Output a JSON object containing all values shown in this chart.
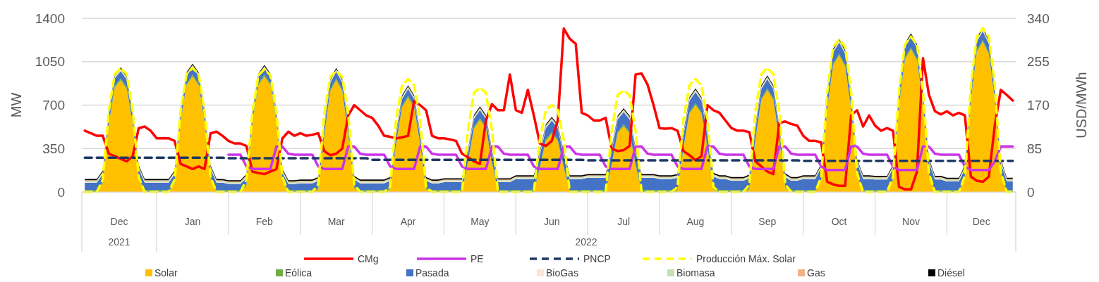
{
  "chart_data": {
    "type": "area",
    "stacked": true,
    "ylabel": "MW",
    "y2label": "USD/MWh",
    "grid": "y",
    "legend": "bottom",
    "ylim": [
      0,
      1400
    ],
    "yticks": [
      0,
      350,
      700,
      1050,
      1400
    ],
    "y2lim": [
      0,
      340
    ],
    "y2ticks": [
      0,
      85,
      170,
      255,
      340
    ],
    "categories": [
      null,
      null,
      null,
      null,
      null,
      null,
      "Dec",
      null,
      null,
      null,
      null,
      null,
      null,
      null,
      null,
      null,
      null,
      null,
      "Jan",
      null,
      null,
      null,
      null,
      null,
      null,
      null,
      null,
      null,
      null,
      null,
      "Feb",
      null,
      null,
      null,
      null,
      null,
      null,
      null,
      null,
      null,
      null,
      null,
      "Mar",
      null,
      null,
      null,
      null,
      null,
      null,
      null,
      null,
      null,
      null,
      null,
      "Apr",
      null,
      null,
      null,
      null,
      null,
      null,
      null,
      null,
      null,
      null,
      null,
      "May",
      null,
      null,
      null,
      null,
      null,
      null,
      null,
      null,
      null,
      null,
      null,
      "Jun",
      null,
      null,
      null,
      null,
      null,
      null,
      null,
      null,
      null,
      null,
      null,
      "Jul",
      null,
      null,
      null,
      null,
      null,
      null,
      null,
      null,
      null,
      null,
      null,
      "Aug",
      null,
      null,
      null,
      null,
      null,
      null,
      null,
      null,
      null,
      null,
      null,
      "Sep",
      null,
      null,
      null,
      null,
      null,
      null,
      null,
      null,
      null,
      null,
      null,
      "Oct",
      null,
      null,
      null,
      null,
      null,
      null,
      null,
      null,
      null,
      null,
      null,
      "Nov",
      null,
      null,
      null,
      null,
      null,
      null,
      null,
      null,
      null,
      null,
      null,
      "Dec",
      null,
      null,
      null,
      null,
      null
    ],
    "annotations": [
      "2021",
      "2022"
    ],
    "series": [
      {
        "name": "Solar",
        "color": "#ffc000",
        "values": [
          0,
          0,
          0,
          70,
          540,
          840,
          900,
          830,
          540,
          110,
          0,
          0,
          0,
          0,
          0,
          70,
          560,
          860,
          930,
          860,
          560,
          110,
          0,
          0,
          0,
          0,
          0,
          50,
          560,
          860,
          930,
          860,
          560,
          90,
          0,
          0,
          0,
          0,
          0,
          20,
          450,
          810,
          900,
          810,
          450,
          30,
          0,
          0,
          0,
          0,
          0,
          20,
          380,
          680,
          760,
          680,
          380,
          20,
          0,
          0,
          0,
          0,
          0,
          0,
          230,
          510,
          580,
          510,
          230,
          0,
          0,
          0,
          0,
          0,
          0,
          0,
          190,
          410,
          470,
          410,
          190,
          0,
          0,
          0,
          0,
          0,
          0,
          0,
          210,
          470,
          530,
          470,
          210,
          0,
          0,
          0,
          0,
          0,
          0,
          10,
          350,
          630,
          700,
          630,
          350,
          20,
          0,
          0,
          0,
          0,
          0,
          20,
          410,
          740,
          820,
          740,
          410,
          30,
          0,
          0,
          0,
          0,
          0,
          90,
          660,
          1020,
          1100,
          1010,
          660,
          130,
          0,
          0,
          0,
          0,
          0,
          90,
          690,
          1070,
          1150,
          1060,
          690,
          140,
          0,
          0,
          0,
          0,
          0,
          100,
          730,
          1130,
          1210,
          1110,
          730,
          150,
          0,
          0
        ]
      },
      {
        "name": "Eólica",
        "color": "#70ad47",
        "values": [
          15,
          15,
          15,
          15,
          15,
          15,
          15,
          15,
          15,
          15,
          15,
          15,
          15,
          15,
          15,
          15,
          15,
          15,
          15,
          15,
          15,
          15,
          15,
          15,
          15,
          15,
          15,
          15,
          15,
          15,
          15,
          15,
          15,
          15,
          15,
          15,
          15,
          15,
          15,
          15,
          15,
          15,
          15,
          15,
          15,
          15,
          15,
          15,
          15,
          15,
          15,
          15,
          15,
          15,
          15,
          15,
          15,
          15,
          15,
          15,
          15,
          15,
          15,
          15,
          15,
          15,
          15,
          15,
          15,
          15,
          15,
          15,
          15,
          15,
          15,
          15,
          15,
          15,
          15,
          15,
          15,
          15,
          15,
          15,
          15,
          15,
          15,
          15,
          15,
          15,
          15,
          15,
          15,
          15,
          15,
          15,
          15,
          15,
          15,
          15,
          15,
          15,
          15,
          15,
          15,
          15,
          15,
          15,
          15,
          15,
          15,
          15,
          15,
          15,
          15,
          15,
          15,
          15,
          15,
          15,
          15,
          15,
          15,
          15,
          15,
          15,
          15,
          15,
          15,
          15,
          15,
          15,
          15,
          15,
          15,
          15,
          15,
          15,
          15,
          15,
          15,
          15,
          15,
          15,
          15,
          15,
          15,
          15,
          15,
          15,
          15,
          15,
          15,
          15,
          15,
          15
        ]
      },
      {
        "name": "Pasada",
        "color": "#4472c4",
        "values": [
          60,
          60,
          60,
          60,
          60,
          60,
          60,
          60,
          60,
          60,
          60,
          60,
          60,
          60,
          60,
          60,
          60,
          60,
          60,
          60,
          60,
          60,
          60,
          60,
          50,
          50,
          50,
          50,
          50,
          50,
          50,
          50,
          50,
          50,
          50,
          50,
          55,
          55,
          55,
          55,
          55,
          55,
          55,
          55,
          55,
          55,
          55,
          55,
          55,
          55,
          55,
          55,
          55,
          55,
          55,
          55,
          55,
          55,
          55,
          55,
          65,
          65,
          65,
          65,
          65,
          65,
          65,
          65,
          65,
          65,
          65,
          65,
          90,
          90,
          90,
          90,
          90,
          90,
          90,
          90,
          90,
          90,
          90,
          90,
          100,
          100,
          100,
          100,
          100,
          100,
          100,
          100,
          100,
          100,
          100,
          100,
          90,
          90,
          90,
          90,
          90,
          90,
          90,
          90,
          90,
          90,
          90,
          90,
          75,
          75,
          75,
          75,
          75,
          75,
          75,
          75,
          75,
          75,
          75,
          75,
          90,
          90,
          90,
          90,
          90,
          90,
          90,
          90,
          90,
          90,
          90,
          90,
          85,
          85,
          85,
          85,
          85,
          85,
          85,
          85,
          85,
          85,
          85,
          85,
          70,
          70,
          70,
          70,
          70,
          70,
          70,
          70,
          70,
          70,
          70,
          70
        ]
      },
      {
        "name": "BioGas",
        "color": "#fbe5d6",
        "values": [
          5,
          5,
          5,
          5,
          5,
          5,
          5,
          5,
          5,
          5,
          5,
          5,
          5,
          5,
          5,
          5,
          5,
          5,
          5,
          5,
          5,
          5,
          5,
          5,
          5,
          5,
          5,
          5,
          5,
          5,
          5,
          5,
          5,
          5,
          5,
          5,
          5,
          5,
          5,
          5,
          5,
          5,
          5,
          5,
          5,
          5,
          5,
          5,
          5,
          5,
          5,
          5,
          5,
          5,
          5,
          5,
          5,
          5,
          5,
          5,
          5,
          5,
          5,
          5,
          5,
          5,
          5,
          5,
          5,
          5,
          5,
          5,
          5,
          5,
          5,
          5,
          5,
          5,
          5,
          5,
          5,
          5,
          5,
          5,
          5,
          5,
          5,
          5,
          5,
          5,
          5,
          5,
          5,
          5,
          5,
          5,
          5,
          5,
          5,
          5,
          5,
          5,
          5,
          5,
          5,
          5,
          5,
          5,
          5,
          5,
          5,
          5,
          5,
          5,
          5,
          5,
          5,
          5,
          5,
          5,
          5,
          5,
          5,
          5,
          5,
          5,
          5,
          5,
          5,
          5,
          5,
          5,
          5,
          5,
          5,
          5,
          5,
          5,
          5,
          5,
          5,
          5,
          5,
          5,
          5,
          5,
          5,
          5,
          5,
          5,
          5,
          5,
          5,
          5,
          5,
          5
        ]
      },
      {
        "name": "Biomasa",
        "color": "#c5e0b4",
        "values": [
          10,
          10,
          10,
          10,
          10,
          10,
          10,
          10,
          10,
          10,
          10,
          10,
          10,
          10,
          10,
          10,
          10,
          10,
          10,
          10,
          10,
          10,
          10,
          10,
          10,
          10,
          10,
          10,
          10,
          10,
          10,
          10,
          10,
          10,
          10,
          10,
          10,
          10,
          10,
          10,
          10,
          10,
          10,
          10,
          10,
          10,
          10,
          10,
          10,
          10,
          10,
          10,
          10,
          10,
          10,
          10,
          10,
          10,
          10,
          10,
          10,
          10,
          10,
          10,
          10,
          10,
          10,
          10,
          10,
          10,
          10,
          10,
          10,
          10,
          10,
          10,
          10,
          10,
          10,
          10,
          10,
          10,
          10,
          10,
          10,
          10,
          10,
          10,
          10,
          10,
          10,
          10,
          10,
          10,
          10,
          10,
          10,
          10,
          10,
          10,
          10,
          10,
          10,
          10,
          10,
          10,
          10,
          10,
          10,
          10,
          10,
          10,
          10,
          10,
          10,
          10,
          10,
          10,
          10,
          10,
          10,
          10,
          10,
          10,
          10,
          10,
          10,
          10,
          10,
          10,
          10,
          10,
          10,
          10,
          10,
          10,
          10,
          10,
          10,
          10,
          10,
          10,
          10,
          10,
          10,
          10,
          10,
          10,
          10,
          10,
          10,
          10,
          10,
          10,
          10,
          10
        ]
      },
      {
        "name": "Gas",
        "color": "#f4b183",
        "values": [
          5,
          5,
          5,
          5,
          5,
          5,
          5,
          5,
          5,
          5,
          5,
          5,
          5,
          5,
          5,
          5,
          5,
          5,
          5,
          5,
          5,
          5,
          5,
          5,
          5,
          5,
          5,
          5,
          5,
          5,
          5,
          5,
          5,
          5,
          5,
          5,
          5,
          5,
          5,
          5,
          5,
          5,
          5,
          5,
          5,
          5,
          5,
          5,
          5,
          5,
          5,
          5,
          5,
          5,
          5,
          5,
          5,
          5,
          5,
          5,
          5,
          5,
          5,
          5,
          5,
          5,
          5,
          5,
          5,
          5,
          5,
          5,
          5,
          5,
          5,
          5,
          5,
          5,
          5,
          5,
          5,
          5,
          5,
          5,
          5,
          5,
          5,
          5,
          5,
          5,
          5,
          5,
          5,
          5,
          5,
          5,
          5,
          5,
          5,
          5,
          5,
          5,
          5,
          5,
          5,
          5,
          5,
          5,
          5,
          5,
          5,
          5,
          5,
          5,
          5,
          5,
          5,
          5,
          5,
          5,
          5,
          5,
          5,
          5,
          5,
          5,
          5,
          5,
          5,
          5,
          5,
          5,
          5,
          5,
          5,
          5,
          5,
          5,
          5,
          5,
          5,
          5,
          5,
          5,
          5,
          5,
          5,
          5,
          5,
          5,
          5,
          5,
          5,
          5,
          5,
          5
        ]
      },
      {
        "name": "Diésel",
        "color": "#000000",
        "values": [
          10,
          10,
          10,
          10,
          10,
          10,
          10,
          10,
          10,
          10,
          10,
          10,
          10,
          10,
          10,
          10,
          10,
          10,
          10,
          10,
          10,
          10,
          10,
          10,
          10,
          10,
          10,
          10,
          10,
          10,
          10,
          10,
          10,
          10,
          10,
          10,
          10,
          10,
          10,
          10,
          10,
          10,
          10,
          10,
          10,
          10,
          10,
          10,
          10,
          10,
          10,
          10,
          10,
          10,
          10,
          10,
          10,
          10,
          10,
          10,
          10,
          10,
          10,
          10,
          10,
          10,
          10,
          10,
          10,
          10,
          10,
          10,
          10,
          10,
          10,
          10,
          10,
          10,
          10,
          10,
          10,
          10,
          10,
          10,
          10,
          10,
          10,
          10,
          10,
          10,
          10,
          10,
          10,
          10,
          10,
          10,
          10,
          10,
          10,
          10,
          10,
          10,
          10,
          10,
          10,
          10,
          10,
          10,
          10,
          10,
          10,
          10,
          10,
          10,
          10,
          10,
          10,
          10,
          10,
          10,
          10,
          10,
          10,
          10,
          10,
          10,
          10,
          10,
          10,
          10,
          10,
          10,
          10,
          10,
          10,
          10,
          10,
          10,
          10,
          10,
          10,
          10,
          10,
          10,
          10,
          10,
          10,
          10,
          10,
          10,
          10,
          10,
          10,
          10,
          10,
          10
        ]
      },
      {
        "name": "CMg",
        "type": "line",
        "axis": "y2",
        "color": "#ff0000",
        "values": [
          120,
          115,
          110,
          110,
          75,
          70,
          65,
          60,
          70,
          125,
          128,
          120,
          105,
          105,
          105,
          100,
          55,
          50,
          45,
          50,
          45,
          115,
          118,
          110,
          100,
          95,
          95,
          90,
          40,
          37,
          35,
          40,
          45,
          105,
          118,
          110,
          115,
          110,
          112,
          115,
          80,
          72,
          75,
          85,
          150,
          170,
          160,
          150,
          145,
          130,
          110,
          108,
          105,
          107,
          110,
          178,
          170,
          160,
          110,
          105,
          105,
          103,
          100,
          75,
          68,
          60,
          55,
          140,
          172,
          160,
          160,
          230,
          160,
          155,
          200,
          150,
          95,
          90,
          100,
          140,
          320,
          300,
          290,
          155,
          150,
          140,
          140,
          145,
          85,
          80,
          82,
          90,
          230,
          232,
          210,
          170,
          125,
          124,
          125,
          120,
          80,
          72,
          62,
          70,
          170,
          160,
          155,
          140,
          125,
          120,
          120,
          117,
          60,
          50,
          40,
          35,
          135,
          138,
          133,
          130,
          110,
          100,
          100,
          97,
          20,
          15,
          12,
          12,
          150,
          160,
          128,
          150,
          130,
          120,
          125,
          120,
          10,
          5,
          5,
          40,
          262,
          190,
          158,
          152,
          158,
          150,
          155,
          150,
          30,
          22,
          20,
          30,
          130,
          200,
          190,
          179
        ]
      },
      {
        "name": "PE",
        "type": "line",
        "axis": "y2",
        "color": "#cc33e8",
        "values": [
          null,
          null,
          null,
          null,
          null,
          null,
          null,
          null,
          null,
          null,
          null,
          null,
          null,
          null,
          null,
          null,
          null,
          null,
          null,
          null,
          null,
          null,
          null,
          null,
          73,
          73,
          73,
          50,
          45,
          45,
          45,
          45,
          89,
          89,
          75,
          73,
          73,
          73,
          73,
          50,
          45,
          45,
          45,
          45,
          89,
          89,
          75,
          73,
          73,
          73,
          73,
          50,
          45,
          45,
          45,
          45,
          89,
          89,
          75,
          73,
          73,
          73,
          73,
          50,
          45,
          45,
          45,
          45,
          89,
          89,
          75,
          73,
          73,
          73,
          73,
          50,
          45,
          45,
          45,
          45,
          89,
          89,
          75,
          73,
          73,
          73,
          73,
          50,
          45,
          45,
          45,
          45,
          89,
          89,
          75,
          73,
          73,
          73,
          73,
          50,
          45,
          45,
          45,
          45,
          89,
          89,
          75,
          73,
          73,
          73,
          73,
          50,
          45,
          45,
          45,
          45,
          89,
          89,
          75,
          73,
          73,
          73,
          73,
          50,
          43,
          43,
          43,
          43,
          89,
          89,
          75,
          73,
          73,
          73,
          73,
          50,
          43,
          43,
          43,
          43,
          89,
          89,
          75,
          73,
          73,
          73,
          73,
          50,
          43,
          43,
          43,
          43,
          60,
          89,
          89,
          89
        ]
      },
      {
        "name": "PNCP",
        "type": "line",
        "axis": "y2",
        "color": "#1f3864",
        "line_style": "dashed",
        "values": [
          67,
          67,
          67,
          67,
          67,
          67,
          67,
          67,
          67,
          67,
          67,
          67,
          67,
          67,
          67,
          67,
          67,
          67,
          67,
          67,
          67,
          67,
          67,
          67,
          66,
          66,
          66,
          66,
          66,
          66,
          66,
          66,
          66,
          66,
          66,
          66,
          66,
          66,
          66,
          66,
          66,
          66,
          66,
          66,
          66,
          66,
          66,
          66,
          63,
          63,
          63,
          63,
          63,
          63,
          63,
          63,
          63,
          63,
          63,
          63,
          63,
          63,
          63,
          63,
          63,
          63,
          63,
          63,
          63,
          63,
          63,
          63,
          63,
          63,
          63,
          63,
          63,
          63,
          63,
          63,
          63,
          63,
          63,
          63,
          62,
          62,
          62,
          62,
          62,
          62,
          62,
          62,
          62,
          62,
          62,
          62,
          62,
          62,
          62,
          62,
          62,
          62,
          62,
          62,
          62,
          62,
          62,
          62,
          62,
          62,
          62,
          62,
          62,
          62,
          62,
          62,
          62,
          62,
          62,
          62,
          61,
          61,
          61,
          61,
          61,
          61,
          61,
          61,
          61,
          61,
          61,
          61,
          61,
          61,
          61,
          61,
          61,
          61,
          61,
          61,
          61,
          61,
          61,
          61,
          61,
          61,
          61,
          61,
          61,
          61,
          61,
          61,
          61,
          61,
          61,
          61
        ]
      },
      {
        "name": "Producción Máx. Solar",
        "type": "line",
        "color": "#ffff00",
        "line_style": "dashed",
        "values": [
          0,
          0,
          0,
          100,
          650,
          950,
          1000,
          950,
          650,
          120,
          0,
          0,
          0,
          0,
          0,
          100,
          650,
          950,
          1000,
          950,
          650,
          120,
          0,
          0,
          0,
          0,
          0,
          100,
          640,
          940,
          990,
          940,
          640,
          120,
          0,
          0,
          0,
          0,
          0,
          60,
          630,
          930,
          975,
          930,
          630,
          60,
          0,
          0,
          0,
          0,
          0,
          40,
          590,
          860,
          910,
          860,
          590,
          40,
          0,
          0,
          0,
          0,
          0,
          0,
          500,
          800,
          840,
          800,
          500,
          0,
          0,
          0,
          0,
          0,
          0,
          0,
          420,
          660,
          700,
          660,
          420,
          0,
          0,
          0,
          0,
          0,
          0,
          0,
          490,
          780,
          820,
          780,
          490,
          0,
          0,
          0,
          0,
          0,
          0,
          40,
          590,
          860,
          910,
          860,
          590,
          40,
          0,
          0,
          0,
          0,
          0,
          60,
          650,
          950,
          1000,
          950,
          650,
          60,
          0,
          0,
          0,
          0,
          0,
          120,
          800,
          1170,
          1230,
          1170,
          800,
          150,
          0,
          0,
          0,
          0,
          0,
          120,
          810,
          1190,
          1250,
          1190,
          810,
          150,
          0,
          0,
          0,
          0,
          0,
          130,
          860,
          1250,
          1320,
          1250,
          860,
          160,
          0,
          0
        ]
      }
    ]
  }
}
